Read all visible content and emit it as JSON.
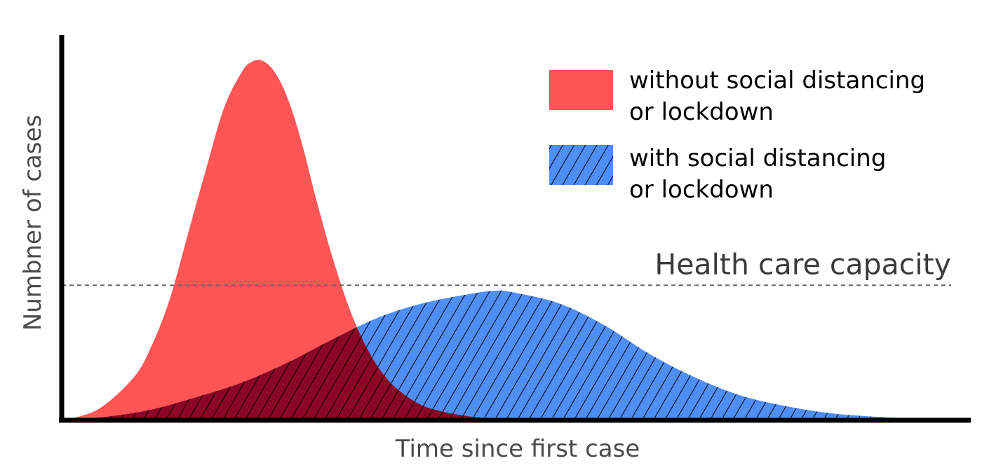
{
  "chart_data": {
    "type": "area",
    "title": "",
    "xlabel": "Time since first case",
    "ylabel": "Numbner of cases",
    "xlim": [
      0,
      100
    ],
    "ylim": [
      0,
      100
    ],
    "grid": false,
    "ticks": false,
    "legend_position": "top-right",
    "series": [
      {
        "name": "without social distancing or lockdown",
        "legend_lines": [
          "without social distancing",
          "or lockdown"
        ],
        "color": "#ff5555",
        "fill": "solid",
        "x": [
          0,
          4,
          8,
          10,
          12,
          14,
          16,
          18,
          20,
          21,
          22,
          23,
          24,
          25,
          26,
          27,
          28,
          30,
          32,
          34,
          36,
          38,
          40,
          42,
          44,
          46,
          48,
          50,
          52,
          54,
          56
        ],
        "y": [
          0,
          3,
          12,
          21,
          34,
          52,
          70,
          87,
          97,
          99.5,
          100,
          98.5,
          95,
          89.5,
          82,
          73,
          63,
          45,
          30,
          19,
          11.5,
          7,
          4,
          2.5,
          1.5,
          0.8,
          0.5,
          0.3,
          0.2,
          0.1,
          0
        ]
      },
      {
        "name": "with social distancing or lockdown",
        "legend_lines": [
          "with social distancing",
          "or lockdown"
        ],
        "color": "#4f8ff5",
        "fill": "hatched",
        "x": [
          0,
          5,
          10,
          15,
          20,
          25,
          30,
          35,
          40,
          45,
          48,
          50,
          55,
          60,
          65,
          70,
          75,
          80,
          85,
          90,
          95,
          100
        ],
        "y": [
          0,
          1,
          3,
          6.5,
          10.5,
          16,
          22.5,
          28.5,
          32.5,
          35,
          36,
          35.5,
          32.5,
          26.5,
          18.5,
          12,
          7,
          4,
          2,
          1,
          0.4,
          0
        ]
      }
    ],
    "overlap_color": "#8b0525",
    "reference_lines": [
      {
        "label": "Health care capacity",
        "y": 37.5,
        "style": "dashed",
        "color": "#666666"
      }
    ]
  }
}
